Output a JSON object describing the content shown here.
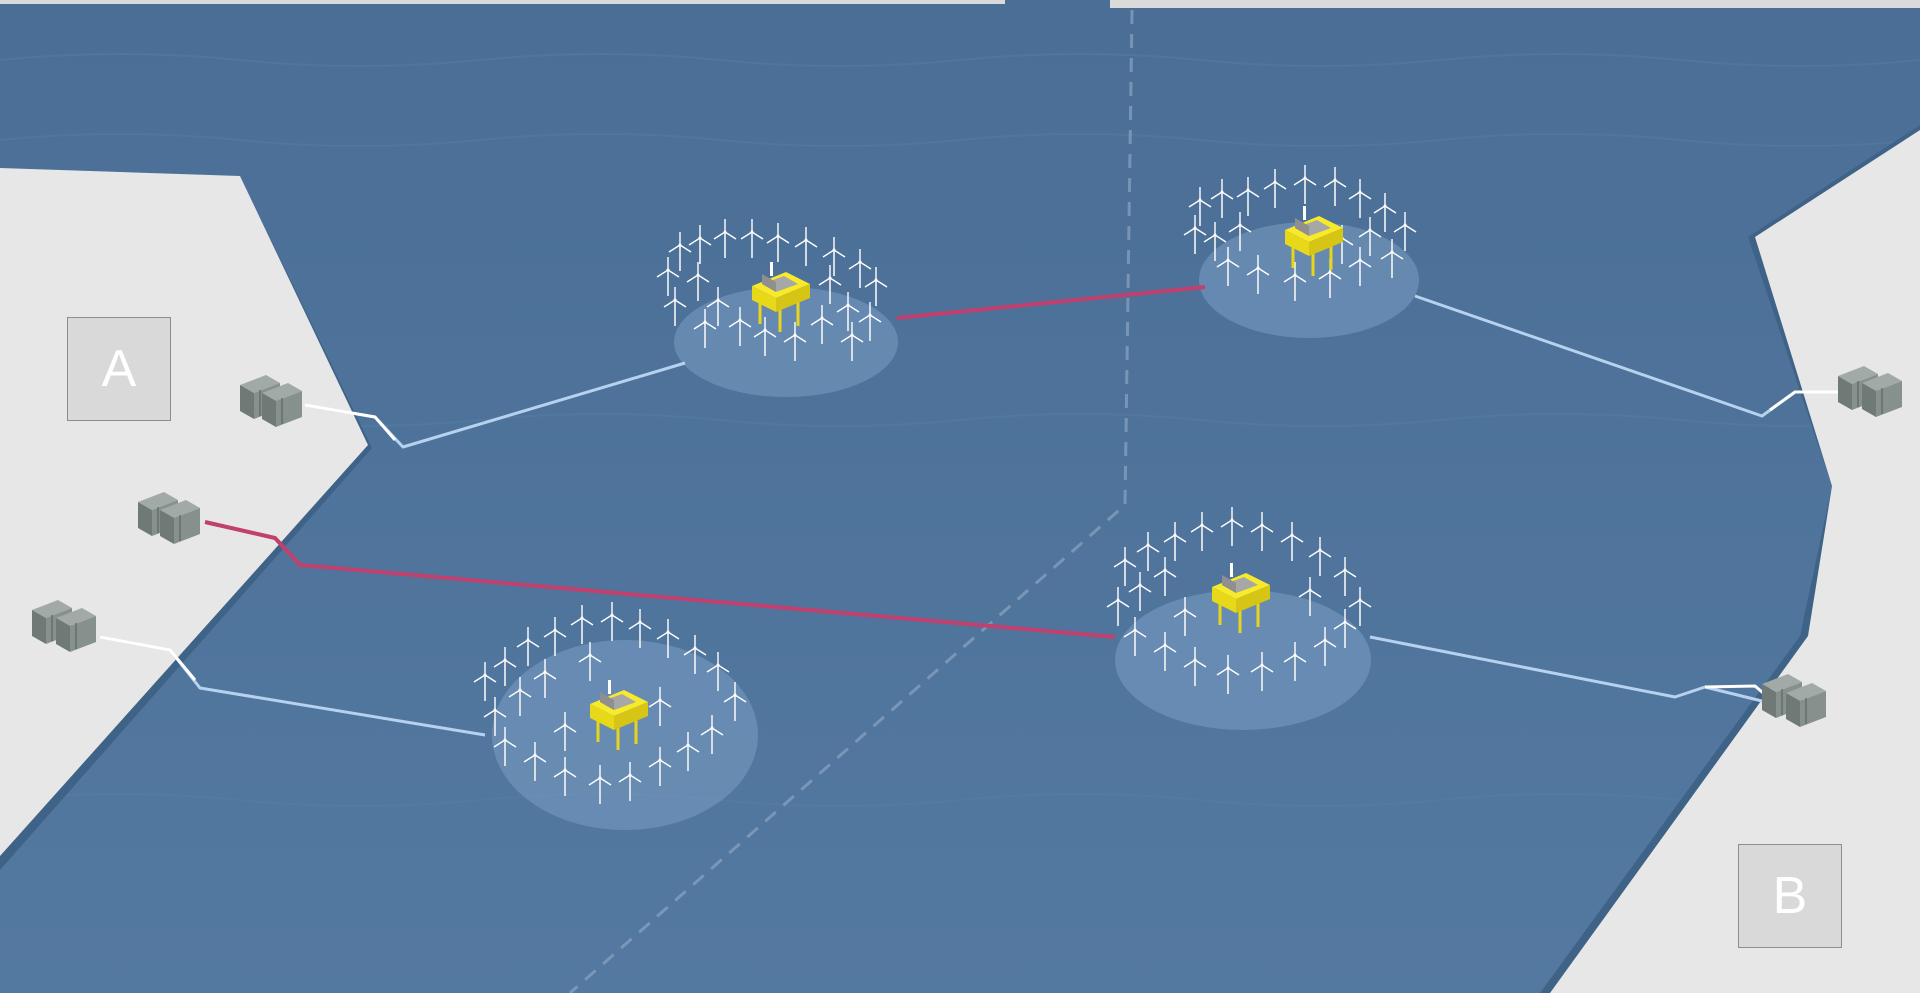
{
  "labels": {
    "a": "A",
    "b": "B"
  },
  "colors": {
    "sea": "#4f749c",
    "land": "#e6e6e6",
    "cable_ac": "#b6d2ee",
    "cable_interconnector": "#c0406e",
    "platform": "#f3e41c",
    "converter_station": "#7e8a86"
  },
  "icons": [
    "wind-turbine-icon",
    "offshore-platform-icon",
    "converter-station-icon"
  ]
}
